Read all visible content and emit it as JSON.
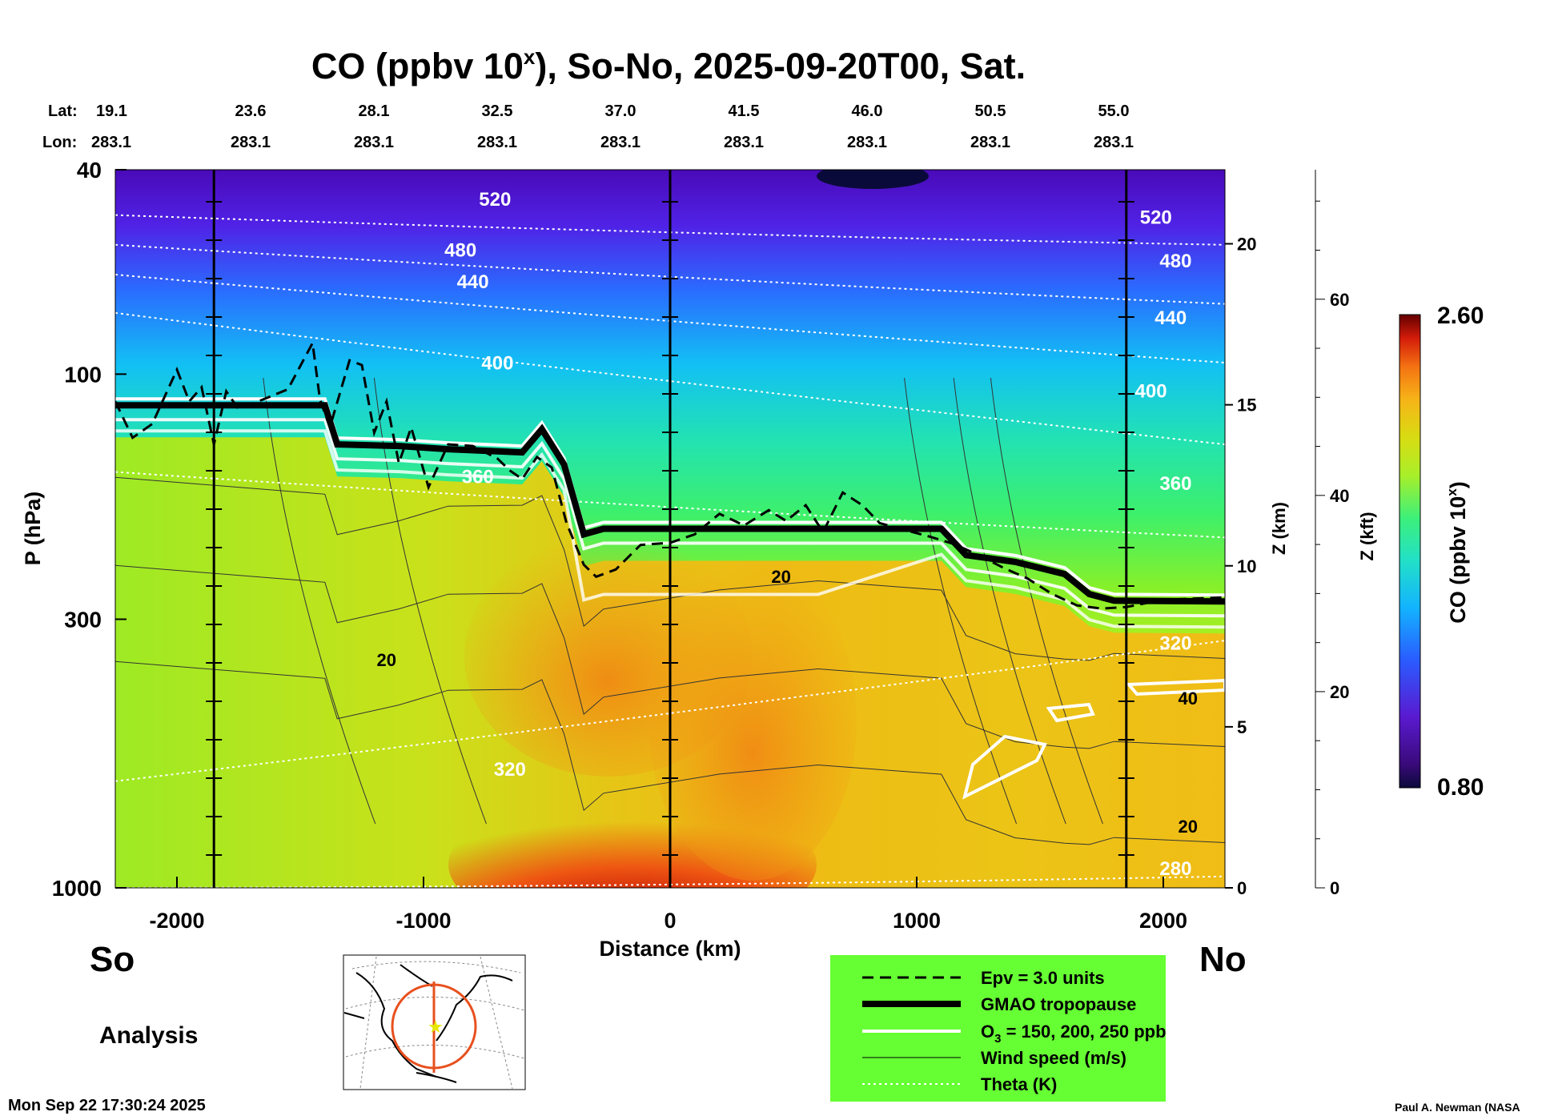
{
  "chart_data": {
    "type": "heatmap",
    "title_prefix": "CO (ppbv 10",
    "title_sup": "x",
    "title_suffix": "), So-No, 2025-09-20T00, Sat.",
    "header": {
      "lat_label": "Lat:",
      "lon_label": "Lon:",
      "lats": [
        "19.1",
        "23.6",
        "28.1",
        "32.5",
        "37.0",
        "41.5",
        "46.0",
        "50.5",
        "55.0"
      ],
      "lons": [
        "283.1",
        "283.1",
        "283.1",
        "283.1",
        "283.1",
        "283.1",
        "283.1",
        "283.1",
        "283.1"
      ]
    },
    "x_axis": {
      "label": "Distance (km)",
      "range": [
        -2250,
        2250
      ],
      "ticks": [
        -2000,
        -1000,
        0,
        1000,
        2000
      ],
      "tick_labels": [
        "-2000",
        "-1000",
        "0",
        "1000",
        "2000"
      ],
      "left_end_label": "So",
      "right_end_label": "No"
    },
    "y_axis": {
      "label": "P (hPa)",
      "scale": "log",
      "range": [
        1000,
        40
      ],
      "ticks": [
        40,
        100,
        300,
        1000
      ],
      "tick_labels": [
        "40",
        "100",
        "300",
        "1000"
      ]
    },
    "z_km_axis": {
      "label": "Z (km)",
      "ticks": [
        0,
        5,
        10,
        15,
        20
      ],
      "tick_labels": [
        "0",
        "5",
        "10",
        "15",
        "20"
      ]
    },
    "z_kft_axis": {
      "label": "Z (kft)",
      "ticks": [
        0,
        20,
        40,
        60
      ],
      "tick_labels": [
        "0",
        "20",
        "40",
        "60"
      ]
    },
    "colorbar": {
      "label_prefix": "CO (ppbv 10",
      "label_sup": "x",
      "label_suffix": ")",
      "min": 0.8,
      "max": 2.6,
      "min_label": "0.80",
      "max_label": "2.60"
    },
    "vertical_lines_km": [
      -1850,
      0,
      1850
    ],
    "tropopause": {
      "name": "GMAO tropopause",
      "x": [
        -2250,
        -1400,
        -1350,
        -1100,
        -900,
        -600,
        -520,
        -430,
        -350,
        -270,
        200,
        600,
        1100,
        1200,
        1400,
        1600,
        1700,
        1800,
        2250
      ],
      "p": [
        115,
        115,
        137,
        138,
        140,
        142,
        128,
        150,
        205,
        200,
        200,
        200,
        200,
        225,
        232,
        245,
        268,
        276,
        277
      ]
    },
    "epv_line": {
      "name": "Epv = 3.0 units",
      "x": [
        -2250,
        -2180,
        -2100,
        -2000,
        -1950,
        -1900,
        -1850,
        -1800,
        -1750,
        -1650,
        -1550,
        -1450,
        -1420,
        -1380,
        -1300,
        -1250,
        -1200,
        -1150,
        -1100,
        -1050,
        -980,
        -900,
        -800,
        -700,
        -650,
        -600,
        -540,
        -480,
        -420,
        -350,
        -300,
        -220,
        -120,
        0,
        100,
        200,
        300,
        400,
        470,
        550,
        620,
        700,
        780,
        850,
        950,
        1050,
        1150,
        1250,
        1350,
        1450,
        1550,
        1650,
        1750,
        1850,
        2000,
        2250
      ],
      "p": [
        113,
        133,
        125,
        98,
        113,
        106,
        137,
        108,
        117,
        112,
        107,
        87,
        112,
        127,
        94,
        96,
        130,
        113,
        149,
        127,
        166,
        137,
        138,
        146,
        154,
        160,
        145,
        152,
        195,
        235,
        248,
        240,
        215,
        213,
        205,
        187,
        197,
        184,
        193,
        180,
        203,
        170,
        180,
        195,
        201,
        207,
        214,
        225,
        238,
        250,
        268,
        282,
        286,
        284,
        275,
        272
      ]
    },
    "o3_contours": {
      "name": "O3 = 150, 200, 250 ppb"
    },
    "wind_speed": {
      "name": "Wind speed (m/s)",
      "labels": [
        {
          "text": "20",
          "x": -1150,
          "p": 370
        },
        {
          "text": "20",
          "x": 450,
          "p": 255
        },
        {
          "text": "40",
          "x": 2100,
          "p": 440
        },
        {
          "text": "20",
          "x": 2100,
          "p": 780
        }
      ]
    },
    "theta": {
      "name": "Theta (K)",
      "levels": [
        {
          "value": 280,
          "p_left": 1000,
          "p_right": 950,
          "label": "280",
          "label_x": 2050,
          "label_p": 945
        },
        {
          "value": 320,
          "p_left": 620,
          "p_right": 330,
          "label": "320",
          "label_x": -650,
          "label_p": 605
        },
        {
          "value": 360,
          "p_left": 155,
          "p_right": 208,
          "label": "360",
          "label_x": -780,
          "label_p": 163
        },
        {
          "value": 400,
          "p_left": 76,
          "p_right": 137,
          "label": "400",
          "label_x": -700,
          "label_p": 98
        },
        {
          "value": 440,
          "p_left": 64,
          "p_right": 95,
          "label": "440",
          "label_x": -800,
          "label_p": 68
        },
        {
          "value": 480,
          "p_left": 56,
          "p_right": 73,
          "label": "480",
          "label_x": -850,
          "label_p": 59
        },
        {
          "value": 520,
          "p_left": 49,
          "p_right": 56,
          "label": "520",
          "label_x": -710,
          "label_p": 47
        }
      ],
      "label_items": [
        {
          "text": "520",
          "x": 1970,
          "p": 51
        },
        {
          "text": "480",
          "x": 2050,
          "p": 62
        },
        {
          "text": "440",
          "x": 2030,
          "p": 80
        },
        {
          "text": "400",
          "x": 1950,
          "p": 111
        },
        {
          "text": "360",
          "x": 2050,
          "p": 168
        },
        {
          "text": "320",
          "x": 2050,
          "p": 344
        }
      ]
    }
  },
  "legend": {
    "items": [
      {
        "label": "Epv = 3.0 units"
      },
      {
        "label": "GMAO tropopause"
      },
      {
        "label_prefix": "O",
        "label_sub": "3",
        "label_suffix": " = 150, 200, 250 ppb"
      },
      {
        "label": "Wind speed (m/s)"
      },
      {
        "label": "Theta (K)"
      }
    ]
  },
  "analysis_label": "Analysis",
  "timestamp": "Mon Sep 22 17:30:24 2025",
  "credit": "Paul A. Newman (NASA",
  "colors": {
    "tropo_line": "#000000",
    "epv_line": "#000000",
    "o3_line": "#ffffff",
    "theta_line": "#ffffff",
    "legend_bg": "#66ff33",
    "map_ring": "#e8501e"
  }
}
